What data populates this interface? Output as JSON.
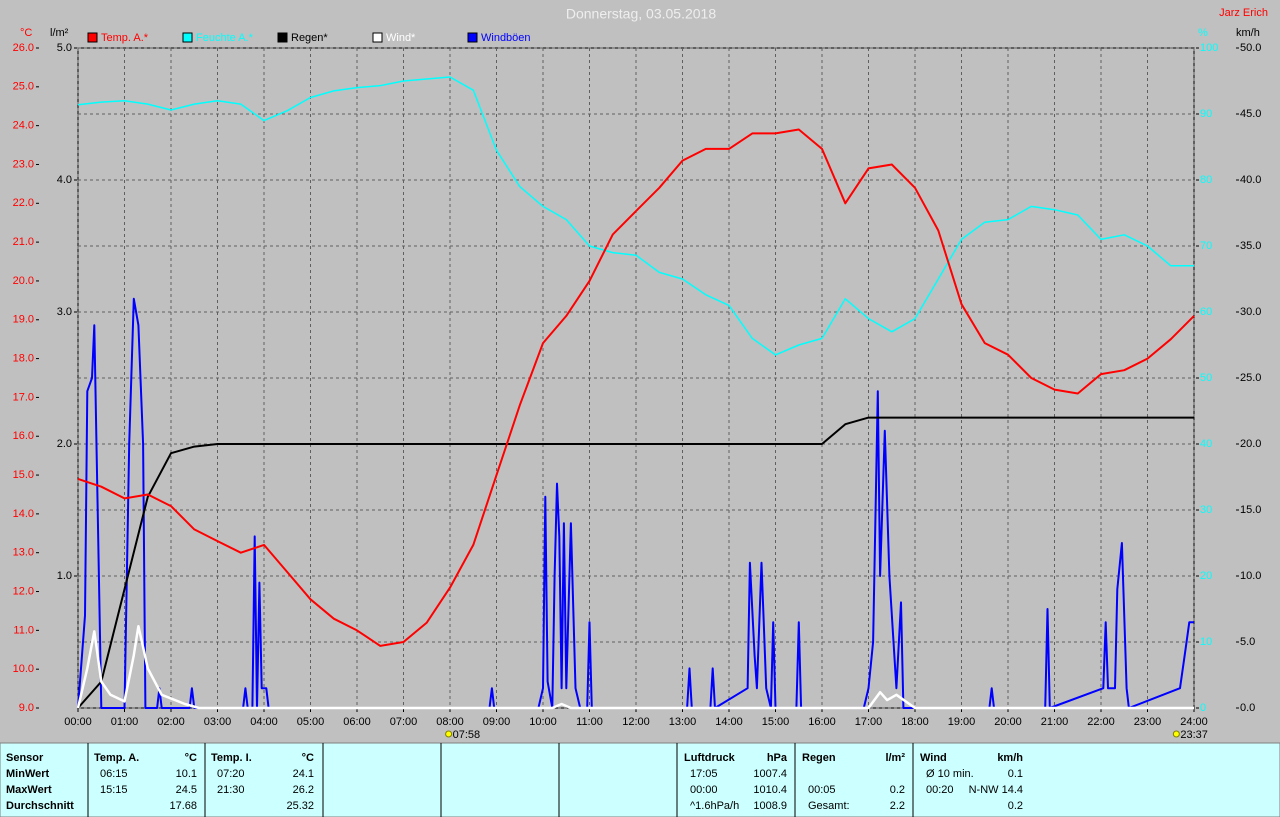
{
  "chart_data": {
    "type": "line",
    "title": "Donnerstag, 03.05.2018",
    "author": "Jarz Erich",
    "units": {
      "y": "°C",
      "y2": "l/m²",
      "y3": "%",
      "y4": "km/h"
    },
    "xlim": [
      0,
      24
    ],
    "xticks": [
      {
        "value": 0,
        "label": "00:00"
      },
      {
        "value": 1,
        "label": "01:00"
      },
      {
        "value": 2,
        "label": "02:00"
      },
      {
        "value": 3,
        "label": "03:00"
      },
      {
        "value": 4,
        "label": "04:00"
      },
      {
        "value": 5,
        "label": "05:00"
      },
      {
        "value": 6,
        "label": "06:00"
      },
      {
        "value": 7,
        "label": "07:00"
      },
      {
        "value": 8,
        "label": "08:00"
      },
      {
        "value": 9,
        "label": "09:00"
      },
      {
        "value": 10,
        "label": "10:00"
      },
      {
        "value": 11,
        "label": "11:00"
      },
      {
        "value": 12,
        "label": "12:00"
      },
      {
        "value": 13,
        "label": "13:00"
      },
      {
        "value": 14,
        "label": "14:00"
      },
      {
        "value": 15,
        "label": "15:00"
      },
      {
        "value": 16,
        "label": "16:00"
      },
      {
        "value": 17,
        "label": "17:00"
      },
      {
        "value": 18,
        "label": "18:00"
      },
      {
        "value": 19,
        "label": "19:00"
      },
      {
        "value": 20,
        "label": "20:00"
      },
      {
        "value": 21,
        "label": "21:00"
      },
      {
        "value": 22,
        "label": "22:00"
      },
      {
        "value": 23,
        "label": "23:00"
      },
      {
        "value": 24,
        "label": "24:00"
      }
    ],
    "ylim": [
      9,
      26
    ],
    "yticks": [
      {
        "value": 9,
        "label": "9.0"
      },
      {
        "value": 10,
        "label": "10.0"
      },
      {
        "value": 11,
        "label": "11.0"
      },
      {
        "value": 12,
        "label": "12.0"
      },
      {
        "value": 13,
        "label": "13.0"
      },
      {
        "value": 14,
        "label": "14.0"
      },
      {
        "value": 15,
        "label": "15.0"
      },
      {
        "value": 16,
        "label": "16.0"
      },
      {
        "value": 17,
        "label": "17.0"
      },
      {
        "value": 18,
        "label": "18.0"
      },
      {
        "value": 19,
        "label": "19.0"
      },
      {
        "value": 20,
        "label": "20.0"
      },
      {
        "value": 21,
        "label": "21.0"
      },
      {
        "value": 22,
        "label": "22.0"
      },
      {
        "value": 23,
        "label": "23.0"
      },
      {
        "value": 24,
        "label": "24.0"
      },
      {
        "value": 25,
        "label": "25.0"
      },
      {
        "value": 26,
        "label": "26.0"
      }
    ],
    "y2lim": [
      0,
      5
    ],
    "y2ticks": [
      {
        "value": 1,
        "label": "1.0"
      },
      {
        "value": 2,
        "label": "2.0"
      },
      {
        "value": 3,
        "label": "3.0"
      },
      {
        "value": 4,
        "label": "4.0"
      },
      {
        "value": 5,
        "label": "5.0"
      }
    ],
    "y3lim": [
      0,
      100
    ],
    "y3ticks": [
      0,
      10,
      20,
      30,
      40,
      50,
      60,
      70,
      80,
      90,
      100
    ],
    "y4lim": [
      0,
      50
    ],
    "y4ticks": [
      {
        "value": 0,
        "label": "0.0"
      },
      {
        "value": 5,
        "label": "5.0"
      },
      {
        "value": 10,
        "label": "10.0"
      },
      {
        "value": 15,
        "label": "15.0"
      },
      {
        "value": 20,
        "label": "20.0"
      },
      {
        "value": 25,
        "label": "25.0"
      },
      {
        "value": 30,
        "label": "30.0"
      },
      {
        "value": 35,
        "label": "35.0"
      },
      {
        "value": 40,
        "label": "40.0"
      },
      {
        "value": 45,
        "label": "45.0"
      },
      {
        "value": 50,
        "label": "50.0"
      }
    ],
    "grid": true,
    "x": [
      0,
      0.5,
      1,
      1.5,
      2,
      2.5,
      3,
      3.5,
      4,
      4.5,
      5,
      5.5,
      6,
      6.5,
      7,
      7.5,
      8,
      8.5,
      9,
      9.5,
      10,
      10.5,
      11,
      11.5,
      12,
      12.5,
      13,
      13.5,
      14,
      14.5,
      15,
      15.5,
      16,
      16.5,
      17,
      17.5,
      18,
      18.5,
      19,
      19.5,
      20,
      20.5,
      21,
      21.5,
      22,
      22.5,
      23,
      23.5,
      24
    ],
    "series": [
      {
        "name": "Temp. A.*",
        "color": "#ff0000",
        "axis": "y",
        "values": [
          14.9,
          14.7,
          14.4,
          14.5,
          14.2,
          13.6,
          13.3,
          13.0,
          13.2,
          12.5,
          11.8,
          11.3,
          11.0,
          10.6,
          10.7,
          11.2,
          12.1,
          13.2,
          15.0,
          16.8,
          18.4,
          19.1,
          20.0,
          21.2,
          21.8,
          22.4,
          23.1,
          23.4,
          23.4,
          23.8,
          23.8,
          23.9,
          23.4,
          22.0,
          22.9,
          23.0,
          22.4,
          21.3,
          19.4,
          18.4,
          18.1,
          17.5,
          17.2,
          17.1,
          17.6,
          17.7,
          18.0,
          18.5,
          19.1
        ]
      },
      {
        "name": "Feuchte A.*",
        "color": "#00ffff",
        "axis": "y3",
        "values": [
          91.4,
          91.8,
          92,
          91.5,
          90.6,
          91.5,
          92,
          91.5,
          89,
          90.5,
          92.5,
          93.5,
          94,
          94.3,
          95,
          95.3,
          95.6,
          93.6,
          84.5,
          79,
          76,
          74,
          70,
          69,
          68.6,
          66,
          65,
          62.6,
          61,
          56,
          53.5,
          55,
          56,
          62,
          59,
          57,
          59,
          65,
          71,
          73.6,
          74,
          76,
          75.5,
          74.7,
          71,
          71.7,
          70,
          67,
          67
        ]
      },
      {
        "name": "Regen*",
        "color": "#000000",
        "axis": "y2",
        "values": [
          0,
          0.2,
          0.9,
          1.6,
          1.93,
          1.98,
          2,
          2,
          2,
          2,
          2,
          2,
          2,
          2,
          2,
          2,
          2,
          2,
          2,
          2,
          2,
          2,
          2,
          2,
          2,
          2,
          2,
          2,
          2,
          2,
          2,
          2,
          2,
          2.15,
          2.2,
          2.2,
          2.2,
          2.2,
          2.2,
          2.2,
          2.2,
          2.2,
          2.2,
          2.2,
          2.2,
          2.2,
          2.2,
          2.2,
          2.2
        ]
      },
      {
        "name": "Wind*",
        "color": "#ffffff",
        "axis": "y4",
        "x": [
          0,
          0.2,
          0.35,
          0.5,
          0.7,
          1.0,
          1.2,
          1.3,
          1.5,
          1.8,
          2.3,
          2.6,
          10.2,
          10.4,
          10.6,
          17.0,
          17.25,
          17.4,
          17.6,
          18.0,
          24
        ],
        "values": [
          0,
          3,
          5.8,
          2,
          1,
          0.5,
          4,
          6.2,
          3,
          1,
          0.3,
          0,
          0,
          0.3,
          0,
          0,
          1.2,
          0.6,
          1,
          0,
          0
        ]
      },
      {
        "name": "Windböen",
        "color": "#0000ff",
        "axis": "y4",
        "x": [
          0,
          0.15,
          0.2,
          0.3,
          0.35,
          0.45,
          0.5,
          1.0,
          1.1,
          1.2,
          1.3,
          1.4,
          1.45,
          1.7,
          1.75,
          1.8,
          2.4,
          2.45,
          2.5,
          3.55,
          3.6,
          3.65,
          3.75,
          3.8,
          3.85,
          3.9,
          3.95,
          4.05,
          4.1,
          8.85,
          8.9,
          8.95,
          9.9,
          10.0,
          10.05,
          10.1,
          10.2,
          10.25,
          10.3,
          10.35,
          10.4,
          10.45,
          10.5,
          10.6,
          10.7,
          10.8,
          10.95,
          11.0,
          11.05,
          13.1,
          13.15,
          13.2,
          13.6,
          13.65,
          13.7,
          14.4,
          14.45,
          14.55,
          14.6,
          14.7,
          14.8,
          14.9,
          14.95,
          15.0,
          15.45,
          15.5,
          15.55,
          16.9,
          17.0,
          17.1,
          17.2,
          17.25,
          17.35,
          17.45,
          17.6,
          17.7,
          17.75,
          19.6,
          19.65,
          19.7,
          20.8,
          20.85,
          20.9,
          22.05,
          22.1,
          22.15,
          22.3,
          22.35,
          22.45,
          22.55,
          22.6,
          23.7,
          23.8,
          23.9,
          24
        ],
        "values": [
          0,
          7,
          24,
          25,
          29,
          10,
          0,
          0,
          20,
          31,
          29,
          20,
          0,
          0,
          1.5,
          0,
          0,
          1.5,
          0,
          0,
          1.5,
          0,
          0,
          13,
          0,
          9.5,
          1.5,
          1.5,
          0,
          0,
          1.5,
          0,
          0,
          1.5,
          16,
          2,
          0,
          10,
          17,
          13,
          1.5,
          14,
          1.5,
          14,
          1.5,
          0,
          0,
          6.5,
          0,
          0,
          3,
          0,
          0,
          3,
          0,
          1.5,
          11,
          4,
          1.5,
          11,
          1.5,
          0,
          6.5,
          0,
          0,
          6.5,
          0,
          0,
          1.5,
          5,
          24,
          10,
          21,
          10,
          1.5,
          8,
          0,
          0,
          1.5,
          0,
          0,
          7.5,
          0,
          1.5,
          6.5,
          1.5,
          1.5,
          9,
          12.5,
          1.5,
          0,
          1.5,
          4,
          6.5,
          6.5
        ]
      }
    ],
    "annotations": [
      {
        "text": "07:58",
        "x": 7.97
      },
      {
        "text": "23:37",
        "x": 23.62
      }
    ]
  },
  "stats": {
    "header": "Sensor",
    "row_labels": [
      "MinWert",
      "MaxWert",
      "Durchschnitt"
    ],
    "columns": [
      {
        "header": "Temp. A.",
        "unit": "°C",
        "rows": [
          {
            "time": "06:15",
            "value": "10.1"
          },
          {
            "time": "15:15",
            "value": "24.5"
          },
          {
            "value": "17.68"
          }
        ]
      },
      {
        "header": "Temp. I.",
        "unit": "°C",
        "rows": [
          {
            "time": "07:20",
            "value": "24.1"
          },
          {
            "time": "21:30",
            "value": "26.2"
          },
          {
            "value": "25.32"
          }
        ]
      },
      {
        "header": "Luftdruck",
        "unit": "hPa",
        "rows": [
          {
            "time": "17:05",
            "value": "1007.4"
          },
          {
            "time": "00:00",
            "value": "1010.4"
          },
          {
            "time": "^1.6hPa/h",
            "value": "1008.9"
          }
        ]
      },
      {
        "header": "Regen",
        "unit": "l/m²",
        "rows": [
          null,
          {
            "time": "00:05",
            "value": "0.2"
          },
          {
            "time": "Gesamt:",
            "value": "2.2"
          }
        ]
      },
      {
        "header": "Wind",
        "unit": "km/h",
        "rows": [
          {
            "time": "Ø 10 min.",
            "value": "0.1"
          },
          {
            "time": "00:20",
            "value": "N-NW 14.4"
          },
          {
            "value": "0.2"
          }
        ]
      }
    ]
  }
}
